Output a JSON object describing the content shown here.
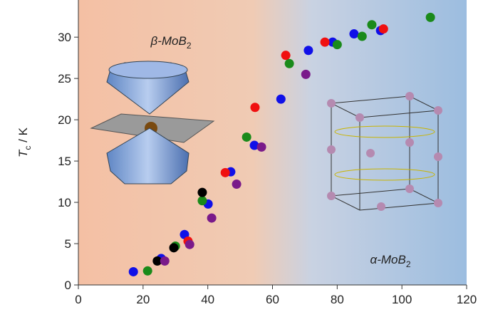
{
  "chart_data": {
    "type": "scatter",
    "y_label": [
      "T",
      "c",
      " / K"
    ],
    "annotations": [
      [
        "β-MoB",
        "2"
      ],
      [
        "α-MoB",
        "2"
      ]
    ],
    "xlim": [
      0,
      120
    ],
    "ylim": [
      0,
      34.5
    ],
    "xticks": [
      0,
      20,
      40,
      60,
      80,
      100,
      120
    ],
    "yticks": [
      0,
      5,
      10,
      15,
      20,
      25,
      30
    ],
    "series": [
      {
        "color": "#1010e8",
        "x": [
          17,
          25.6,
          32.8,
          40.1,
          47.1,
          54.4,
          62.6,
          71.1,
          78.6,
          85.2,
          93.4
        ],
        "values": [
          1.6,
          3.2,
          6.1,
          9.8,
          13.7,
          16.9,
          22.5,
          28.4,
          29.4,
          30.4,
          30.8
        ]
      },
      {
        "color": "#1a8a1a",
        "x": [
          21.4,
          30,
          38.3,
          52,
          65.2,
          80,
          87.7,
          90.7,
          108.8
        ],
        "values": [
          1.7,
          4.7,
          10.2,
          17.9,
          26.8,
          29.1,
          30.1,
          31.5,
          32.4
        ]
      },
      {
        "color": "#000000",
        "x": [
          24.4,
          29.5,
          38.3
        ],
        "values": [
          2.9,
          4.5,
          11.2
        ]
      },
      {
        "color": "#f01010",
        "x": [
          33.9,
          45.4,
          54.6,
          64.1,
          76.2,
          94.3
        ],
        "values": [
          5.3,
          13.6,
          21.5,
          27.8,
          29.4,
          31
        ]
      },
      {
        "color": "#7a1a8a",
        "x": [
          26.7,
          34.4,
          41.2,
          48.9,
          56.6,
          70.3
        ],
        "values": [
          2.9,
          4.9,
          8.1,
          12.2,
          16.7,
          25.5
        ]
      }
    ]
  }
}
